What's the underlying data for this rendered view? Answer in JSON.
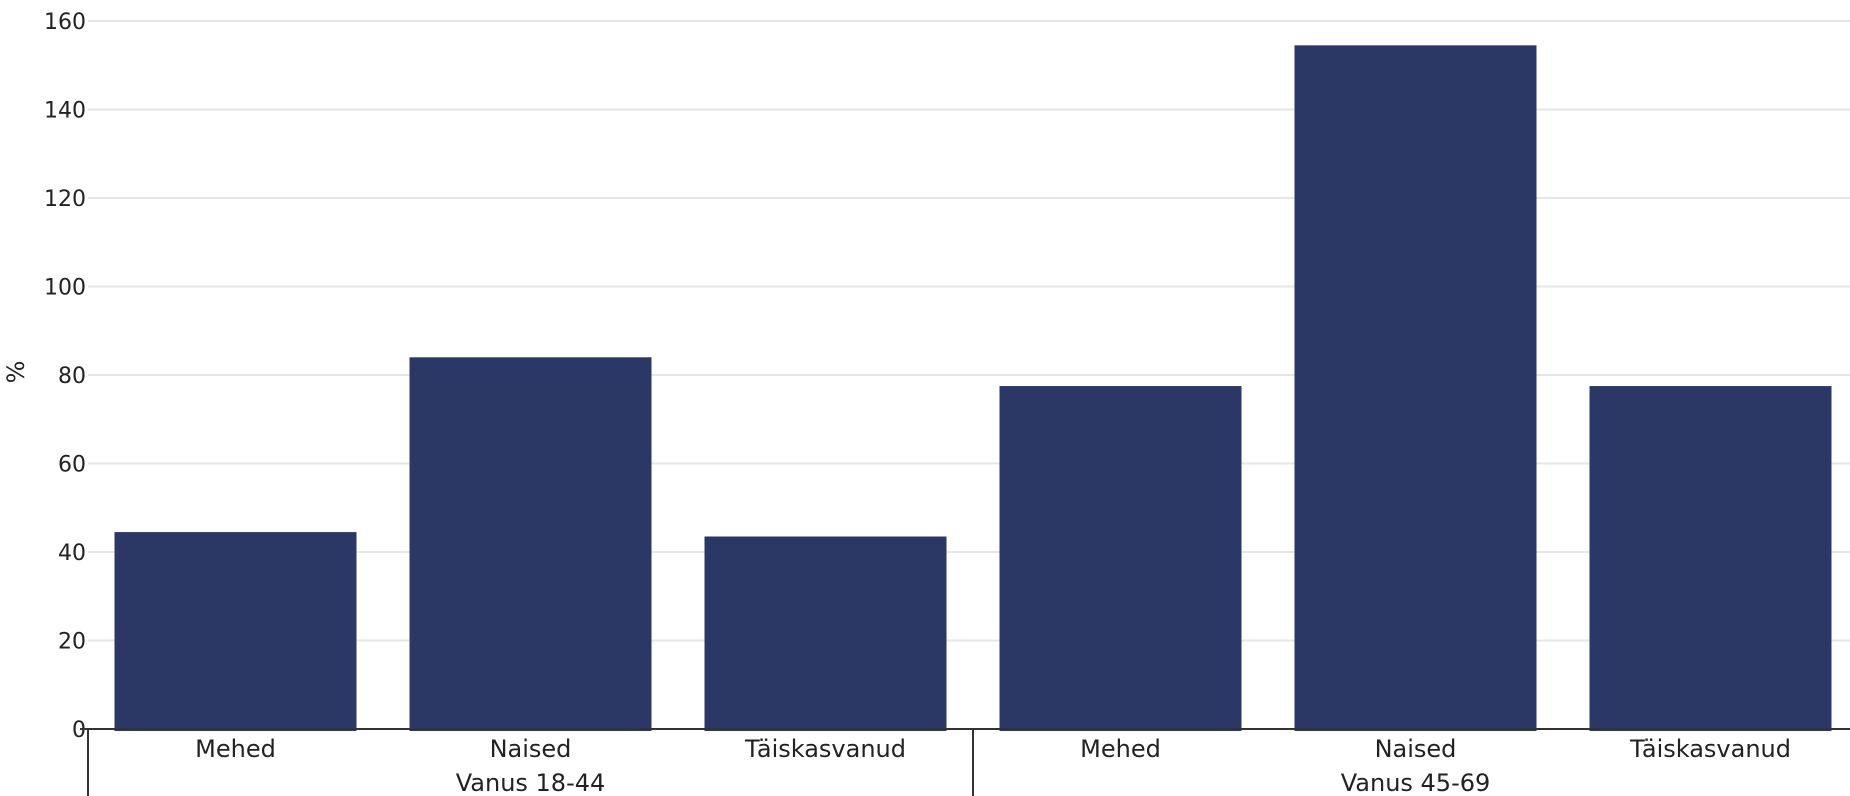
{
  "chart_data": {
    "type": "bar",
    "ylabel": "%",
    "xlabel": "",
    "ylim": [
      0,
      160
    ],
    "yticks": [
      0,
      20,
      40,
      60,
      80,
      100,
      120,
      140,
      160
    ],
    "grid": true,
    "legend": "none",
    "colors": {
      "bar": "#2b3765",
      "grid": "#e6e6e6",
      "axis": "#333333"
    },
    "groups": [
      {
        "label": "Vanus 18-44",
        "categories": [
          "Mehed",
          "Naised",
          "Täiskasvanud"
        ],
        "values": [
          44.5,
          84,
          43.5
        ]
      },
      {
        "label": "Vanus 45-69",
        "categories": [
          "Mehed",
          "Naised",
          "Täiskasvanud"
        ],
        "values": [
          77.5,
          154.5,
          77.5
        ]
      }
    ]
  }
}
